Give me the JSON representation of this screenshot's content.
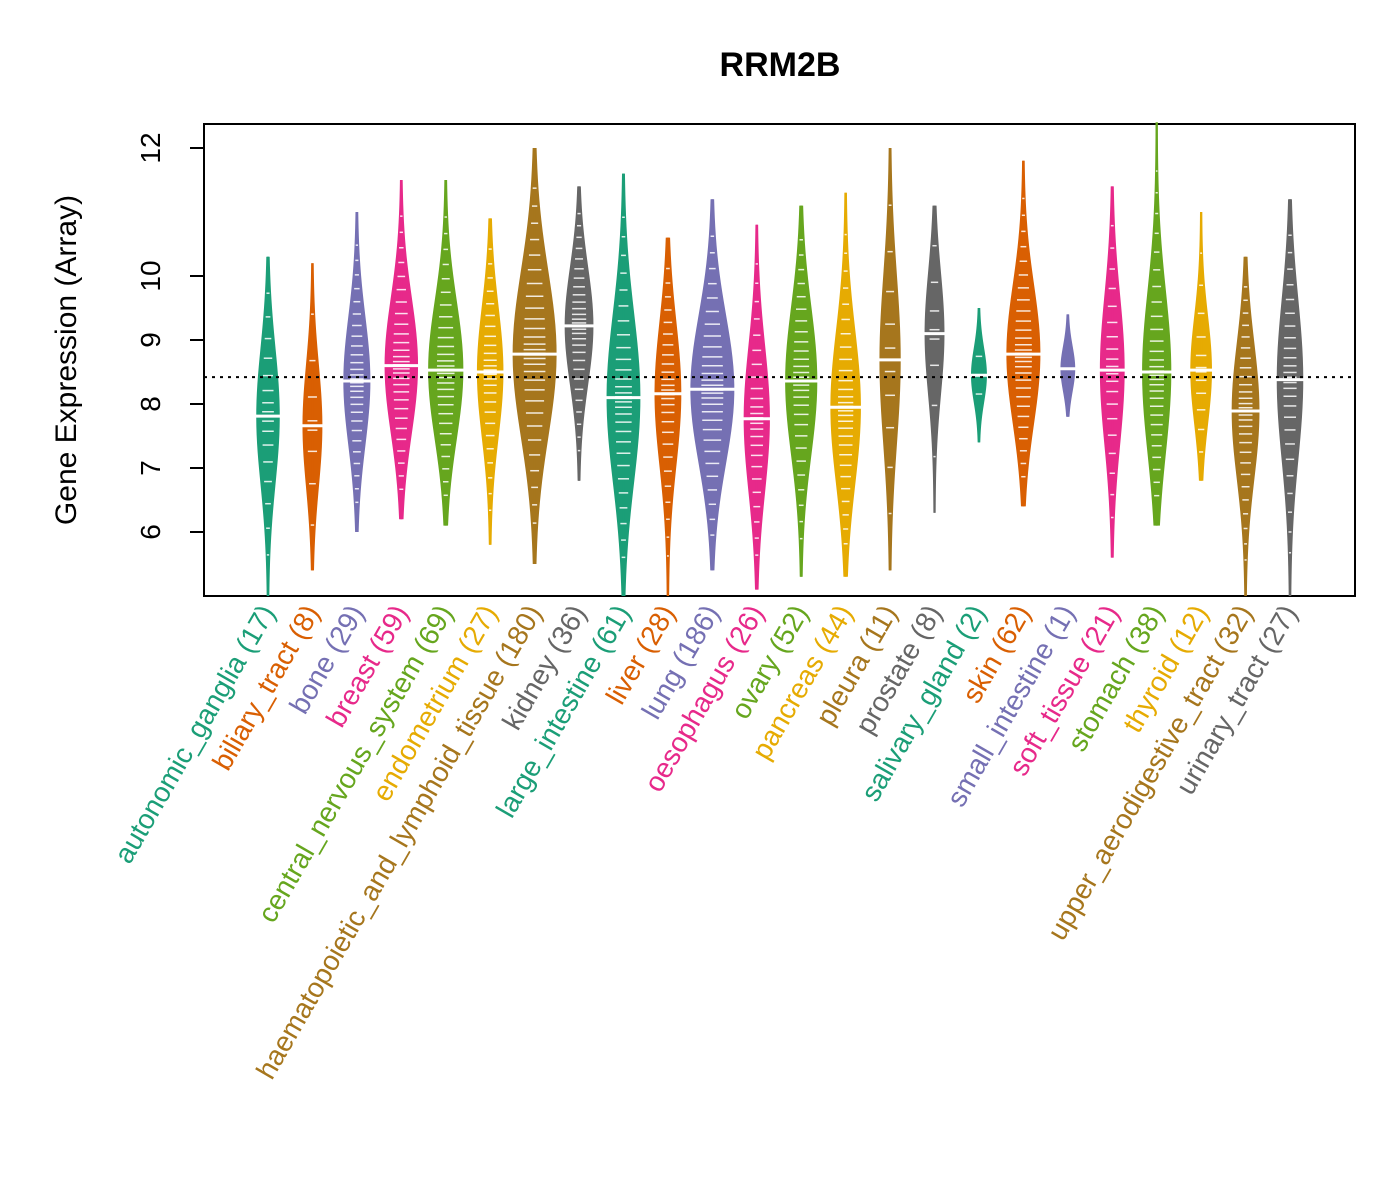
{
  "chart_data": {
    "type": "violin",
    "title": "RRM2B",
    "xlabel": "",
    "ylabel": "Gene Expression (Array)",
    "ylim": [
      5.0,
      12.375
    ],
    "yticks": [
      6,
      7,
      8,
      9,
      10,
      12
    ],
    "reference_line": 8.42,
    "grid": false,
    "palette": [
      "#1B9E77",
      "#D95F02",
      "#7570B3",
      "#E7298A",
      "#66A61E",
      "#E6AB02",
      "#A6761D",
      "#666666"
    ],
    "groups": [
      {
        "label": "autonomic_ganglia (17)",
        "n": 17,
        "min": 5.0,
        "median": 7.81,
        "max": 10.3
      },
      {
        "label": "biliary_tract (8)",
        "n": 8,
        "min": 5.4,
        "median": 7.66,
        "max": 10.2
      },
      {
        "label": "bone (29)",
        "n": 29,
        "min": 6.0,
        "median": 8.36,
        "max": 11.0
      },
      {
        "label": "breast (59)",
        "n": 59,
        "min": 6.2,
        "median": 8.6,
        "max": 11.5
      },
      {
        "label": "central_nervous_system (69)",
        "n": 69,
        "min": 6.1,
        "median": 8.53,
        "max": 11.5
      },
      {
        "label": "endometrium (27)",
        "n": 27,
        "min": 5.8,
        "median": 8.5,
        "max": 10.9
      },
      {
        "label": "haematopoietic_and_lymphoid_tissue (180)",
        "n": 180,
        "min": 5.5,
        "median": 8.78,
        "max": 12.0
      },
      {
        "label": "kidney (36)",
        "n": 36,
        "min": 6.8,
        "median": 9.22,
        "max": 11.4
      },
      {
        "label": "large_intestine (61)",
        "n": 61,
        "min": 5.0,
        "median": 8.1,
        "max": 11.6
      },
      {
        "label": "liver (28)",
        "n": 28,
        "min": 5.0,
        "median": 8.16,
        "max": 10.6
      },
      {
        "label": "lung (186)",
        "n": 186,
        "min": 5.4,
        "median": 8.23,
        "max": 11.2
      },
      {
        "label": "oesophagus (26)",
        "n": 26,
        "min": 5.1,
        "median": 7.77,
        "max": 10.8
      },
      {
        "label": "ovary (52)",
        "n": 52,
        "min": 5.3,
        "median": 8.36,
        "max": 11.1
      },
      {
        "label": "pancreas (44)",
        "n": 44,
        "min": 5.3,
        "median": 7.95,
        "max": 11.3
      },
      {
        "label": "pleura (11)",
        "n": 11,
        "min": 5.4,
        "median": 8.69,
        "max": 12.0
      },
      {
        "label": "prostate (8)",
        "n": 8,
        "min": 6.3,
        "median": 9.1,
        "max": 11.1
      },
      {
        "label": "salivary_gland (2)",
        "n": 2,
        "min": 7.4,
        "median": 8.45,
        "max": 9.5
      },
      {
        "label": "skin (62)",
        "n": 62,
        "min": 6.4,
        "median": 8.78,
        "max": 11.8
      },
      {
        "label": "small_intestine (1)",
        "n": 1,
        "min": 7.8,
        "median": 8.55,
        "max": 9.4
      },
      {
        "label": "soft_tissue (21)",
        "n": 21,
        "min": 5.6,
        "median": 8.53,
        "max": 11.4
      },
      {
        "label": "stomach (38)",
        "n": 38,
        "min": 6.1,
        "median": 8.5,
        "max": 12.4
      },
      {
        "label": "thyroid (12)",
        "n": 12,
        "min": 6.8,
        "median": 8.53,
        "max": 11.0
      },
      {
        "label": "upper_aerodigestive_tract (32)",
        "n": 32,
        "min": 5.0,
        "median": 7.89,
        "max": 10.3
      },
      {
        "label": "urinary_tract (27)",
        "n": 27,
        "min": 5.0,
        "median": 8.38,
        "max": 11.2
      }
    ]
  }
}
